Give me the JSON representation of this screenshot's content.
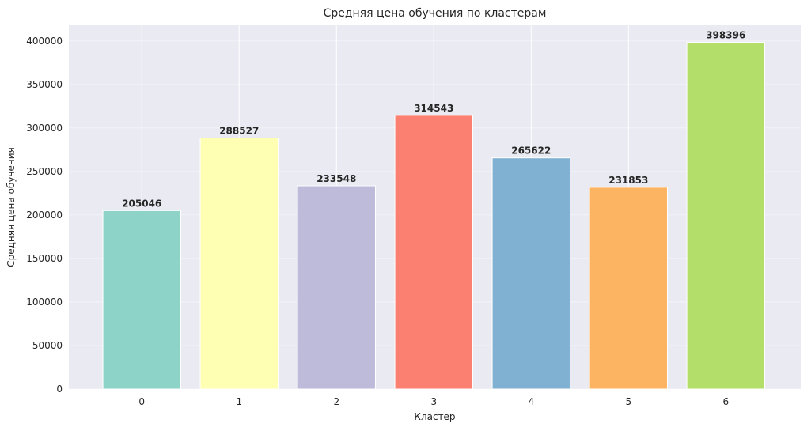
{
  "chart_data": {
    "type": "bar",
    "title": "Средняя цена обучения по кластерам",
    "xlabel": "Кластер",
    "ylabel": "Средняя цена обучения",
    "categories": [
      "0",
      "1",
      "2",
      "3",
      "4",
      "5",
      "6"
    ],
    "values": [
      205046,
      288527,
      233548,
      314543,
      265622,
      231853,
      398396
    ],
    "value_labels": [
      "205046",
      "288527",
      "233548",
      "314543",
      "265622",
      "231853",
      "398396"
    ],
    "colors": [
      "#8dd3c7",
      "#ffffb3",
      "#bebada",
      "#fb8072",
      "#80b1d3",
      "#fdb462",
      "#b3de69"
    ],
    "ylim": [
      0,
      418000
    ],
    "yticks": [
      0,
      50000,
      100000,
      150000,
      200000,
      250000,
      300000,
      350000,
      400000
    ],
    "ytick_labels": [
      "0",
      "50000",
      "100000",
      "150000",
      "200000",
      "250000",
      "300000",
      "350000",
      "400000"
    ],
    "grid": true,
    "background": "#eaeaf2"
  }
}
